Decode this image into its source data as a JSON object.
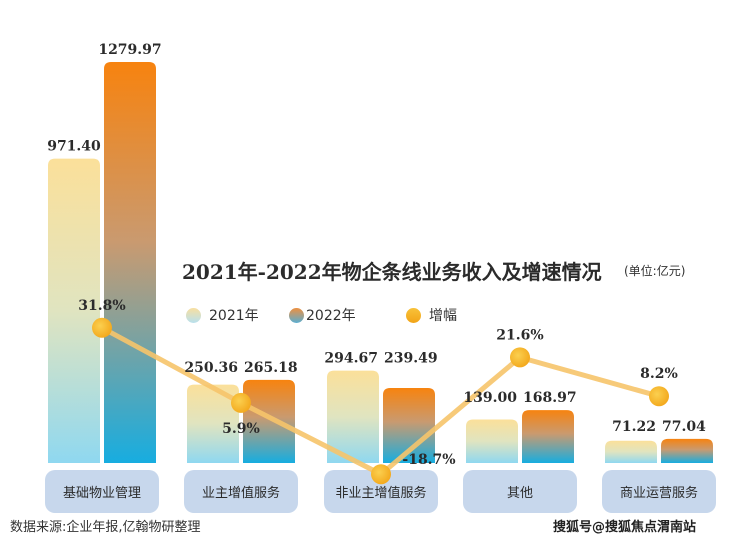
{
  "chart_data": {
    "type": "bar",
    "title": "2021年-2022年物企条线业务收入及增速情况",
    "unit": "(单位:亿元)",
    "categories": [
      "基础物业管理",
      "业主增值服务",
      "非业主增值服务",
      "其他",
      "商业运营服务"
    ],
    "series": [
      {
        "name": "2021年",
        "values": [
          971.4,
          250.36,
          294.67,
          139.0,
          71.22
        ],
        "labels": [
          "971.40",
          "250.36",
          "294.67",
          "139.00",
          "71.22"
        ]
      },
      {
        "name": "2022年",
        "values": [
          1279.97,
          265.18,
          239.49,
          168.97,
          77.04
        ],
        "labels": [
          "1279.97",
          "265.18",
          "239.49",
          "168.97",
          "77.04"
        ]
      }
    ],
    "growth": {
      "name": "增幅",
      "type": "line",
      "values": [
        31.8,
        5.9,
        -18.7,
        21.6,
        8.2
      ],
      "labels": [
        "31.8%",
        "5.9%",
        "-18.7%",
        "21.6%",
        "8.2%"
      ]
    },
    "legend": [
      "2021年",
      "2022年",
      "增幅"
    ],
    "legend_position": "top-right",
    "xlabel": "",
    "ylabel": "",
    "ylim": [
      0,
      1300
    ],
    "grid": false
  },
  "colors": {
    "bar_2021_top": "#fbe09a",
    "bar_2021_bottom": "#8fd8f0",
    "bar_2022_top": "#f7830f",
    "bar_2022_bottom": "#17ade0",
    "growth_line": "#f6c46a",
    "growth_dot": "#f5b21e",
    "category_box": "#c7d7ec",
    "text": "#2b2b2b"
  },
  "source": "数据来源:企业年报,亿翰物研整理",
  "watermark": "搜狐号@搜狐焦点渭南站"
}
